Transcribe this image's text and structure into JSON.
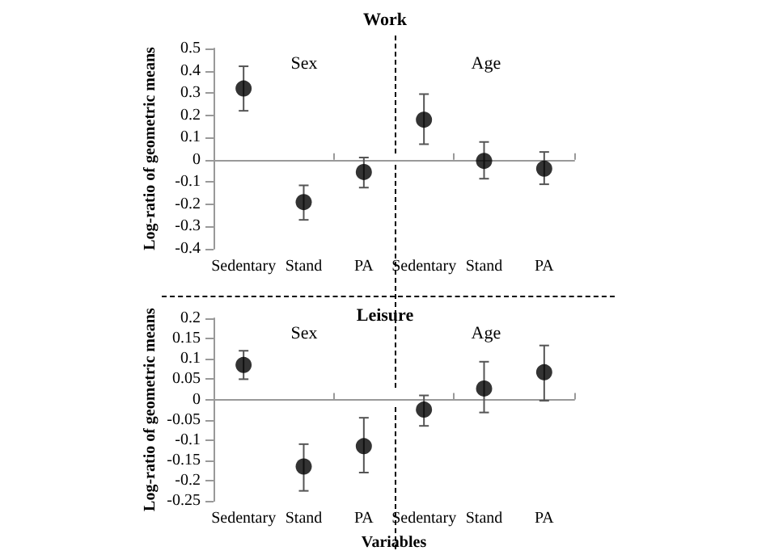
{
  "chart_data": [
    {
      "type": "scatter",
      "title": "Work",
      "ylabel": "Log-ratio of geometric means",
      "annotations": [
        "Sex",
        "Age"
      ],
      "categories": [
        "Sedentary",
        "Stand",
        "PA",
        "Sedentary",
        "Stand",
        "PA"
      ],
      "ylim": [
        -0.4,
        0.5
      ],
      "yticks": [
        -0.4,
        -0.3,
        -0.2,
        -0.1,
        0,
        0.1,
        0.2,
        0.3,
        0.4,
        0.5
      ],
      "series": [
        {
          "color": "#000000",
          "values": [
            0.32,
            -0.19,
            -0.055,
            0.18,
            -0.005,
            -0.04
          ],
          "errors": [
            [
              0.22,
              0.42
            ],
            [
              -0.27,
              -0.115
            ],
            [
              -0.125,
              0.01
            ],
            [
              0.07,
              0.295
            ],
            [
              -0.085,
              0.08
            ],
            [
              -0.11,
              0.035
            ]
          ]
        }
      ],
      "marker": "circle"
    },
    {
      "type": "scatter",
      "title": "Leisure",
      "ylabel": "Log-ratio of geometric means",
      "xlabel": "Variables",
      "annotations": [
        "Sex",
        "Age"
      ],
      "categories": [
        "Sedentary",
        "Stand",
        "PA",
        "Sedentary",
        "Stand",
        "PA"
      ],
      "ylim": [
        -0.25,
        0.2
      ],
      "yticks": [
        -0.25,
        -0.2,
        -0.15,
        -0.1,
        -0.05,
        0,
        0.05,
        0.1,
        0.15,
        0.2
      ],
      "series": [
        {
          "color": "#000000",
          "values": [
            0.085,
            -0.165,
            -0.115,
            -0.025,
            0.027,
            0.067
          ],
          "errors": [
            [
              0.05,
              0.12
            ],
            [
              -0.225,
              -0.11
            ],
            [
              -0.18,
              -0.045
            ],
            [
              -0.065,
              0.01
            ],
            [
              -0.032,
              0.093
            ],
            [
              -0.003,
              0.133
            ]
          ]
        }
      ],
      "marker": "circle"
    }
  ]
}
